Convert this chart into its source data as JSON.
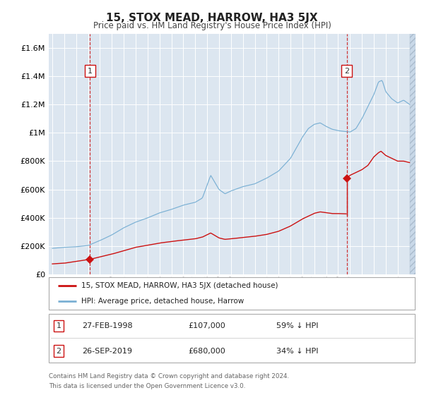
{
  "title": "15, STOX MEAD, HARROW, HA3 5JX",
  "subtitle": "Price paid vs. HM Land Registry's House Price Index (HPI)",
  "background_color": "#ffffff",
  "plot_bg_color": "#dce6f0",
  "grid_color": "#ffffff",
  "hpi_color": "#7ab0d4",
  "price_color": "#cc1111",
  "sale1_date": 1998.15,
  "sale1_price": 107000,
  "sale2_date": 2019.73,
  "sale2_price": 680000,
  "sale2_price_before": 420000,
  "ylim_max": 1700000,
  "xlim_start": 1994.7,
  "xlim_end": 2025.5,
  "legend_label1": "15, STOX MEAD, HARROW, HA3 5JX (detached house)",
  "legend_label2": "HPI: Average price, detached house, Harrow",
  "table_row1_num": "1",
  "table_row1_date": "27-FEB-1998",
  "table_row1_price": "£107,000",
  "table_row1_hpi": "59% ↓ HPI",
  "table_row2_num": "2",
  "table_row2_date": "26-SEP-2019",
  "table_row2_price": "£680,000",
  "table_row2_hpi": "34% ↓ HPI",
  "footnote1": "Contains HM Land Registry data © Crown copyright and database right 2024.",
  "footnote2": "This data is licensed under the Open Government Licence v3.0.",
  "hpi_anchors_t": [
    1995.0,
    1996.0,
    1997.0,
    1998.0,
    1999.0,
    2000.0,
    2001.0,
    2002.0,
    2003.0,
    2004.0,
    2005.0,
    2006.0,
    2007.0,
    2007.6,
    2008.3,
    2009.0,
    2009.5,
    2010.0,
    2011.0,
    2012.0,
    2013.0,
    2014.0,
    2015.0,
    2016.0,
    2016.5,
    2017.0,
    2017.5,
    2018.0,
    2018.5,
    2019.0,
    2019.5,
    2020.0,
    2020.5,
    2021.0,
    2021.5,
    2022.0,
    2022.4,
    2022.7,
    2023.0,
    2023.5,
    2024.0,
    2024.5,
    2025.0
  ],
  "hpi_anchors_v": [
    185000,
    192000,
    196000,
    205000,
    240000,
    280000,
    330000,
    370000,
    400000,
    435000,
    460000,
    490000,
    510000,
    540000,
    700000,
    600000,
    570000,
    590000,
    620000,
    640000,
    680000,
    730000,
    820000,
    970000,
    1030000,
    1060000,
    1070000,
    1045000,
    1025000,
    1015000,
    1010000,
    1005000,
    1030000,
    1100000,
    1185000,
    1270000,
    1360000,
    1370000,
    1290000,
    1240000,
    1210000,
    1230000,
    1200000
  ],
  "red_anchors_t": [
    1995.0,
    1996.0,
    1997.0,
    1998.15,
    1999.0,
    2000.0,
    2001.0,
    2002.0,
    2003.0,
    2004.0,
    2005.0,
    2006.0,
    2007.0,
    2007.6,
    2008.3,
    2009.0,
    2009.5,
    2010.0,
    2011.0,
    2012.0,
    2013.0,
    2014.0,
    2015.0,
    2016.0,
    2016.5,
    2017.0,
    2017.5,
    2018.0,
    2018.5,
    2019.0,
    2019.68,
    2019.69,
    2019.73,
    2019.75,
    2020.0,
    2020.5,
    2021.0,
    2021.5,
    2022.0,
    2022.4,
    2022.6,
    2023.0,
    2023.5,
    2024.0,
    2024.5,
    2025.0
  ],
  "red_anchors_v": [
    75000,
    80000,
    93000,
    107000,
    124000,
    144000,
    168000,
    192000,
    207000,
    222000,
    233000,
    243000,
    252000,
    264000,
    293000,
    258000,
    248000,
    252000,
    261000,
    270000,
    283000,
    305000,
    342000,
    392000,
    412000,
    432000,
    442000,
    436000,
    430000,
    430000,
    428000,
    420000,
    680000,
    680000,
    700000,
    720000,
    740000,
    770000,
    830000,
    860000,
    870000,
    840000,
    820000,
    800000,
    800000,
    790000
  ]
}
